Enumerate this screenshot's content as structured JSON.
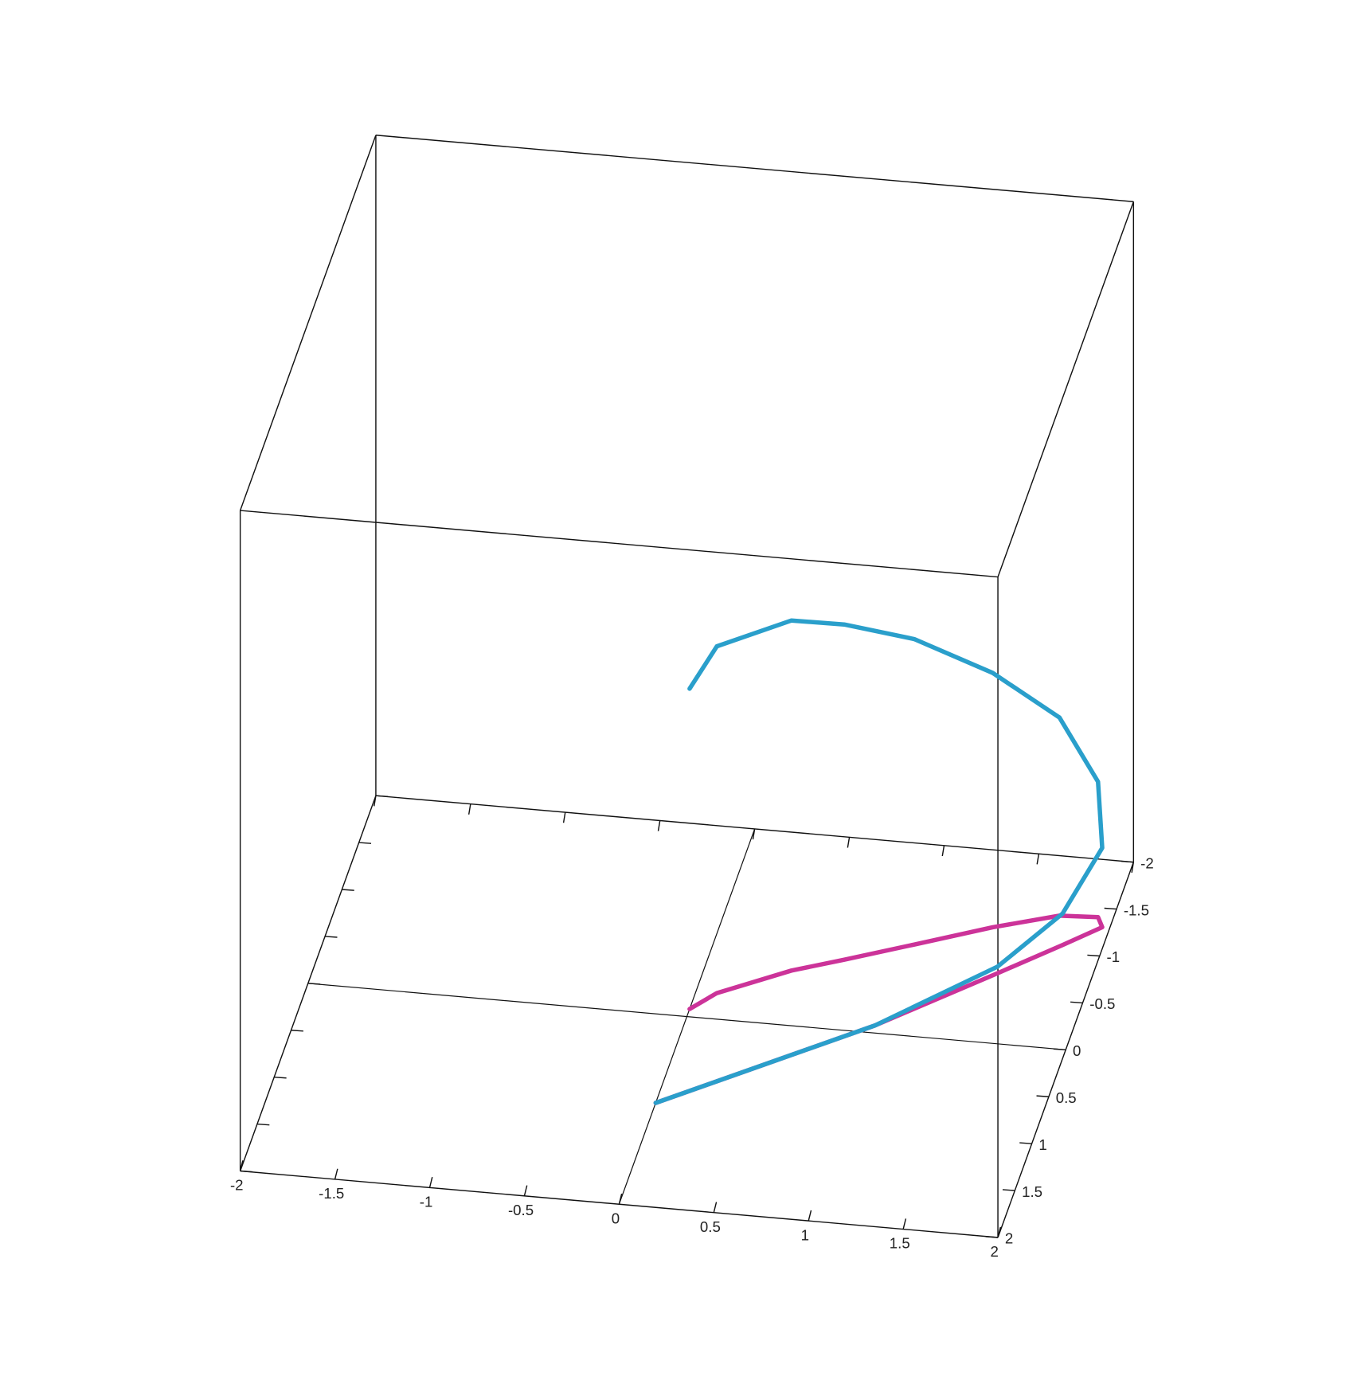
{
  "chart_data": {
    "type": "line3d",
    "title": "",
    "xlabel": "",
    "ylabel": "",
    "zlabel": "",
    "xlim": [
      -2,
      2
    ],
    "ylim": [
      -2,
      2
    ],
    "grid": "floor lines at x=0 and y=0",
    "box": true,
    "x_ticks": [
      "-2",
      "-1.5",
      "-1",
      "-0.5",
      "0",
      "0.5",
      "1",
      "1.5",
      "2"
    ],
    "y_ticks": [
      "-2",
      "-1.5",
      "-1",
      "-0.5",
      "0",
      "0.5",
      "1",
      "1.5",
      "2"
    ],
    "series": [
      {
        "color": "#2a9fcb",
        "kind": "3d curve",
        "points": [
          [
            0.0,
            -0.08,
            -0.06
          ],
          [
            0.11,
            -0.27,
            0.1
          ],
          [
            0.45,
            -0.57,
            0.12
          ],
          [
            0.7,
            -0.73,
            0.03
          ],
          [
            1.03,
            -0.95,
            -0.15
          ],
          [
            1.4,
            -1.2,
            -0.46
          ],
          [
            1.72,
            -1.38,
            -0.8
          ],
          [
            1.92,
            -1.4,
            -1.18
          ],
          [
            1.96,
            -1.3,
            -1.52
          ],
          [
            1.79,
            -1.08,
            -1.81
          ],
          [
            1.51,
            -0.73,
            -1.96
          ],
          [
            0.98,
            -0.08,
            -2.0
          ],
          [
            0.0,
            0.92,
            -2.0
          ]
        ]
      },
      {
        "color": "#cc3399",
        "kind": "floor projection",
        "points": [
          [
            0.0,
            -0.08,
            -2
          ],
          [
            0.11,
            -0.27,
            -2
          ],
          [
            0.45,
            -0.57,
            -2
          ],
          [
            0.7,
            -0.73,
            -2
          ],
          [
            1.03,
            -0.95,
            -2
          ],
          [
            1.4,
            -1.2,
            -2
          ],
          [
            1.72,
            -1.38,
            -2
          ],
          [
            1.92,
            -1.4,
            -2
          ],
          [
            1.96,
            -1.3,
            -2
          ],
          [
            1.79,
            -1.08,
            -2
          ],
          [
            1.51,
            -0.73,
            -2
          ],
          [
            0.98,
            -0.08,
            -2
          ],
          [
            0.0,
            0.92,
            -2
          ]
        ]
      }
    ]
  }
}
